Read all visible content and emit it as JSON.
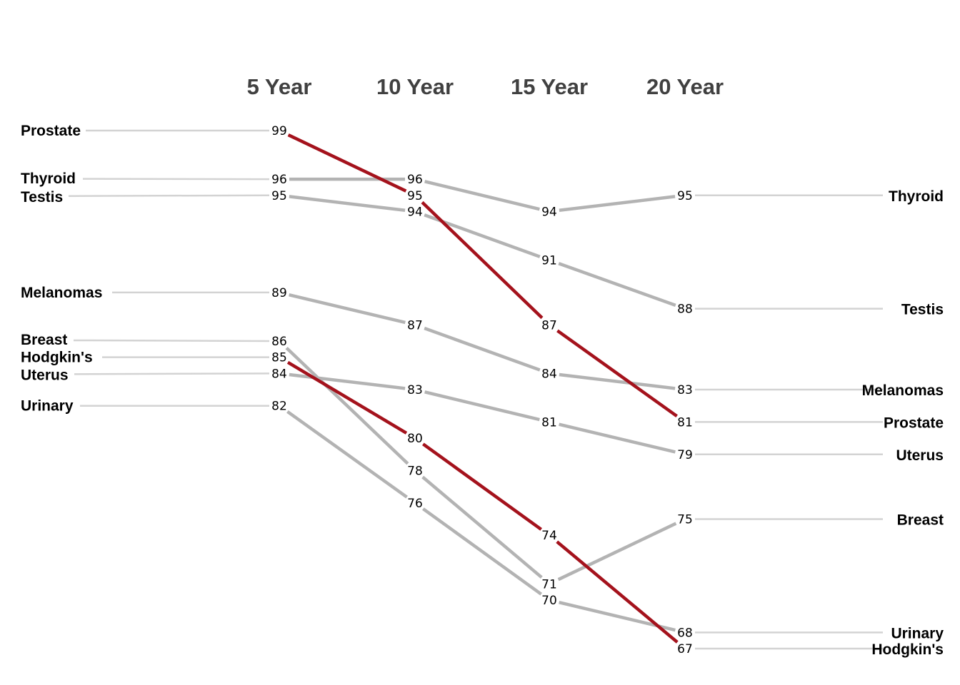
{
  "chart_data": {
    "type": "line",
    "title": "",
    "xlabel": "",
    "ylabel": "",
    "categories": [
      "5 Year",
      "10 Year",
      "15 Year",
      "20 Year"
    ],
    "ylim": [
      67,
      99
    ],
    "highlight_color": "#A4121C",
    "base_color": "#B3B3B3",
    "leader_color": "#D3D3D3",
    "grid": false,
    "series": [
      {
        "name": "Prostate",
        "values": [
          99,
          95,
          87,
          81
        ],
        "highlight": true
      },
      {
        "name": "Thyroid",
        "values": [
          96,
          96,
          94,
          95
        ],
        "highlight": false
      },
      {
        "name": "Testis",
        "values": [
          95,
          94,
          91,
          88
        ],
        "highlight": false
      },
      {
        "name": "Melanomas",
        "values": [
          89,
          87,
          84,
          83
        ],
        "highlight": false
      },
      {
        "name": "Breast",
        "values": [
          86,
          78,
          71,
          75
        ],
        "highlight": false
      },
      {
        "name": "Hodgkin's",
        "values": [
          85,
          80,
          74,
          67
        ],
        "highlight": true
      },
      {
        "name": "Uterus",
        "values": [
          84,
          83,
          81,
          79
        ],
        "highlight": false
      },
      {
        "name": "Urinary",
        "values": [
          82,
          76,
          70,
          68
        ],
        "highlight": false
      }
    ]
  }
}
